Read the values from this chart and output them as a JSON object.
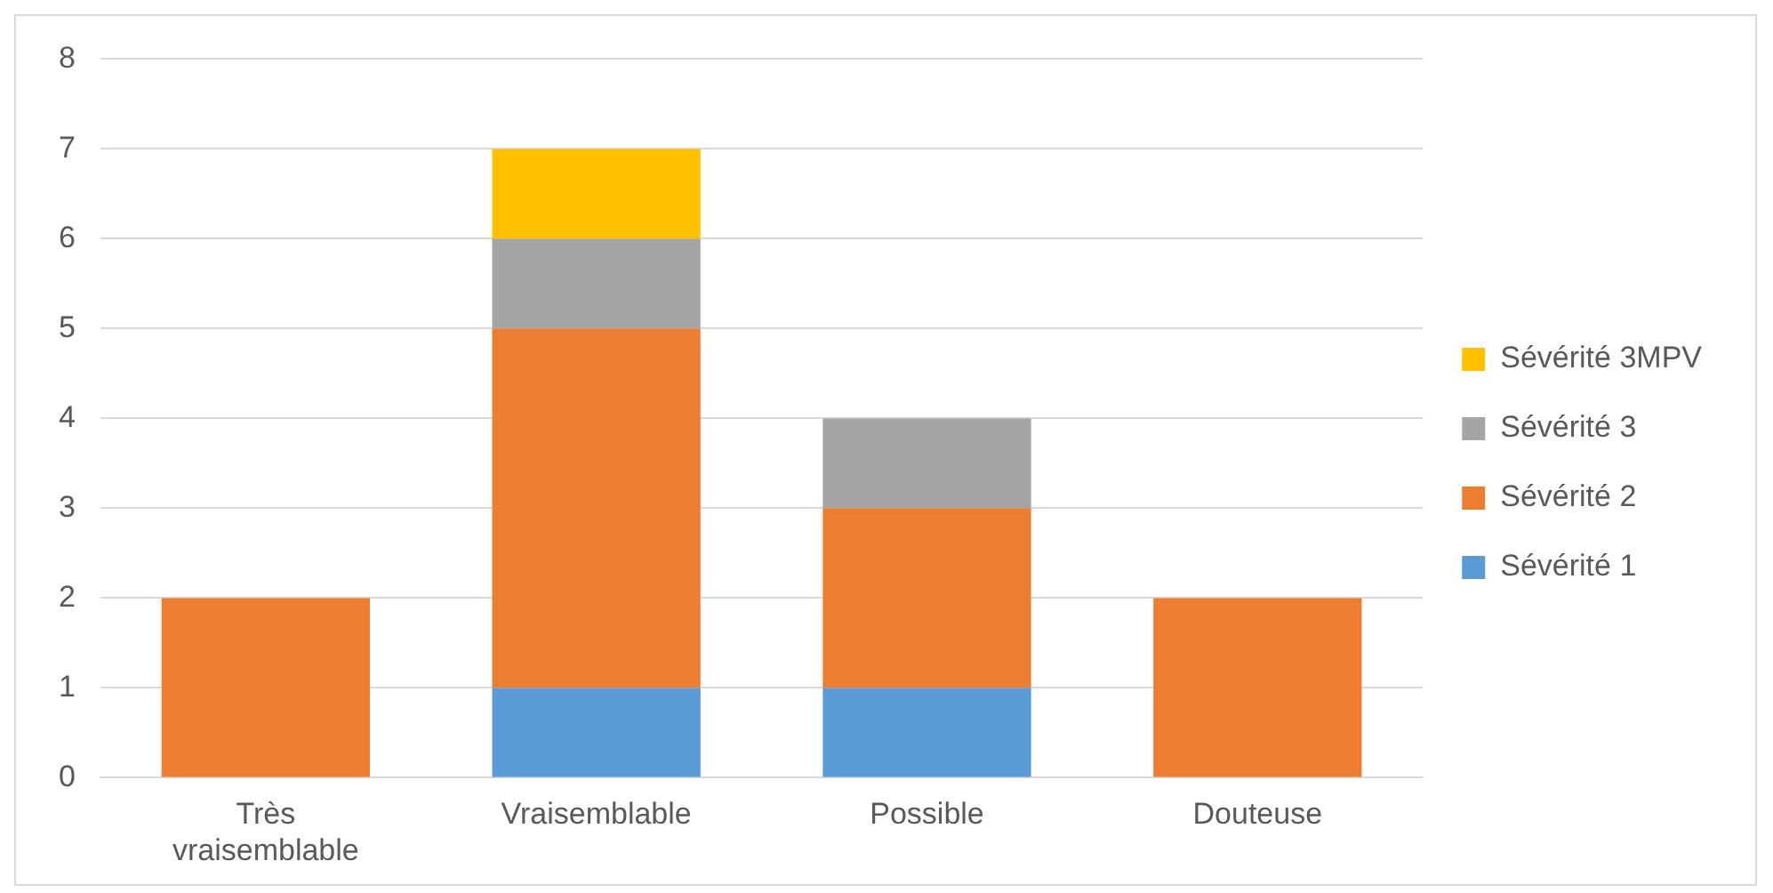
{
  "chart_data": {
    "type": "bar",
    "stacked": true,
    "categories": [
      "Très vraisemblable",
      "Vraisemblable",
      "Possible",
      "Douteuse"
    ],
    "series": [
      {
        "name": "Sévérité 1",
        "color": "#5b9bd5",
        "values": [
          0,
          1,
          1,
          0
        ]
      },
      {
        "name": "Sévérité 2",
        "color": "#ed7d31",
        "values": [
          2,
          4,
          2,
          2
        ]
      },
      {
        "name": "Sévérité 3",
        "color": "#a5a5a5",
        "values": [
          0,
          1,
          1,
          0
        ]
      },
      {
        "name": "Sévérité 3MPV",
        "color": "#ffc000",
        "values": [
          0,
          1,
          0,
          0
        ]
      }
    ],
    "ylim": [
      0,
      8
    ],
    "yticks": [
      0,
      1,
      2,
      3,
      4,
      5,
      6,
      7,
      8
    ],
    "grid": "y",
    "legend": "right"
  }
}
